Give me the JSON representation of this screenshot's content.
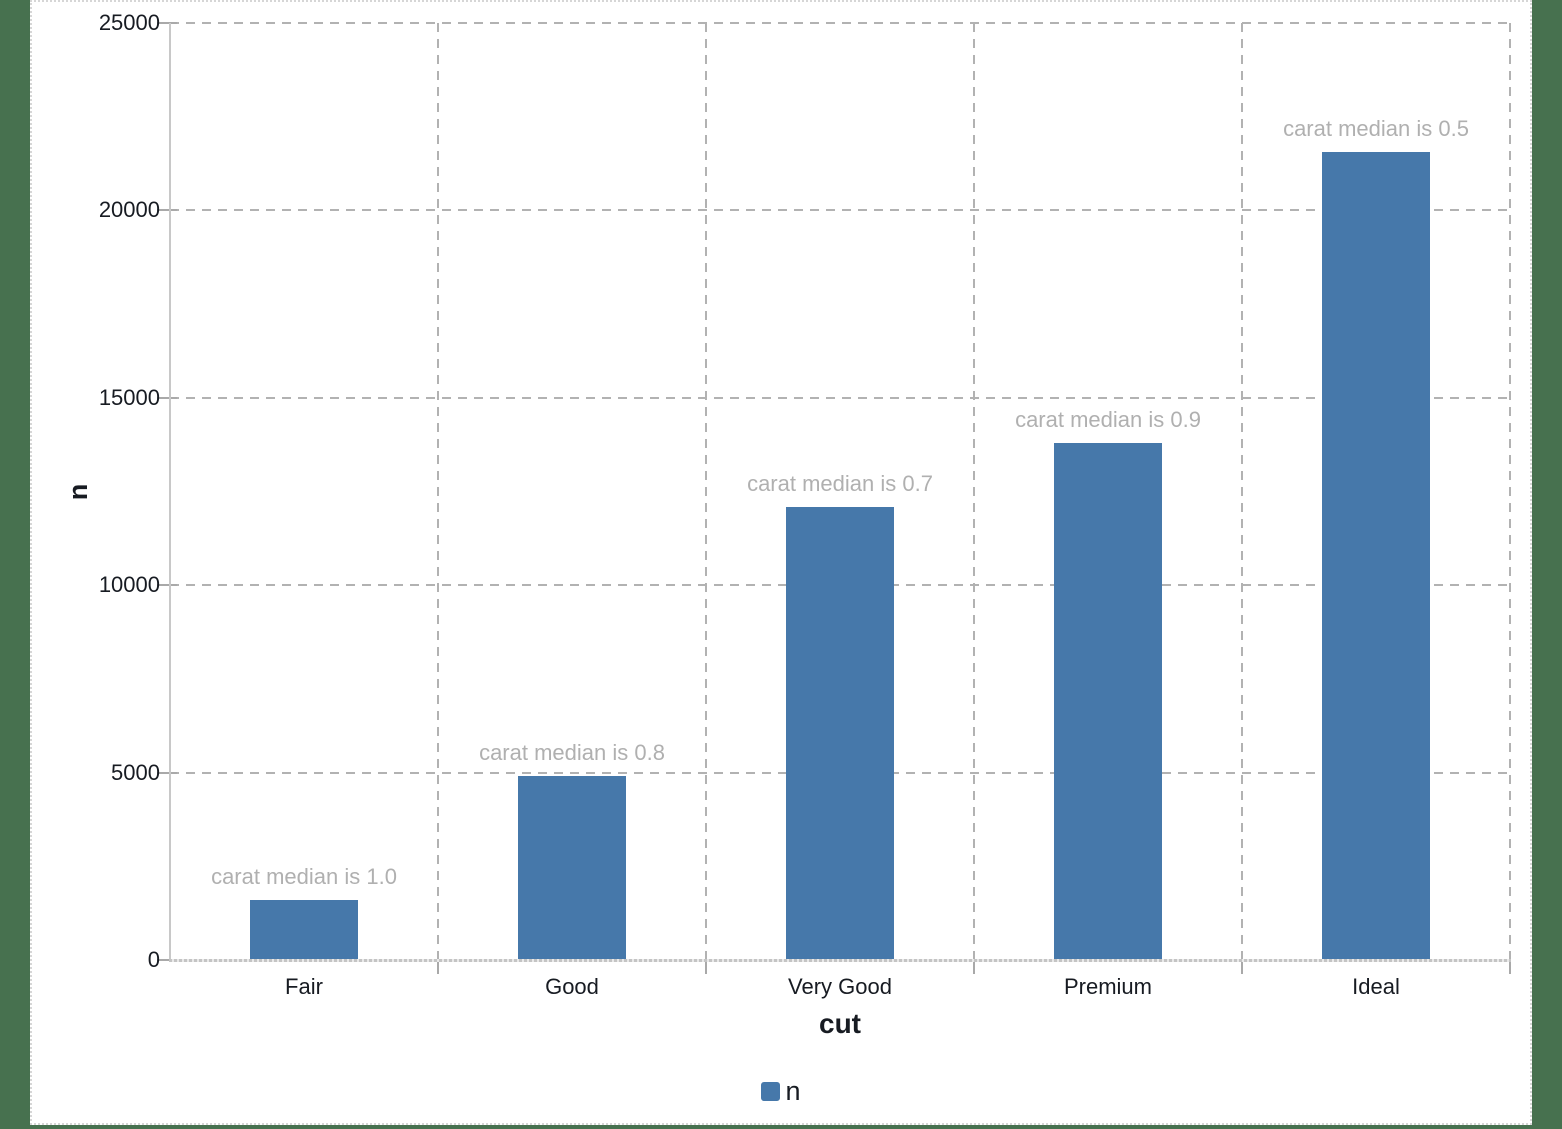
{
  "page": {
    "background_color": "#47714f",
    "panel_color": "#ffffff"
  },
  "chart_data": {
    "type": "bar",
    "title": "",
    "categories": [
      "Fair",
      "Good",
      "Very Good",
      "Premium",
      "Ideal"
    ],
    "series": [
      {
        "name": "n",
        "color": "#4678aa",
        "values": [
          1610,
          4906,
          12082,
          13791,
          21551
        ]
      }
    ],
    "bar_annotations": [
      "carat median is 1.0",
      "carat median is 0.8",
      "carat median is 0.7",
      "carat median is 0.9",
      "carat median is 0.5"
    ],
    "xlabel": "cut",
    "ylabel": "n",
    "ylim": [
      0,
      25000
    ],
    "yticks": [
      0,
      5000,
      10000,
      15000,
      20000,
      25000
    ],
    "ytick_labels": [
      "0",
      "5000",
      "10000",
      "15000",
      "20000",
      "25000"
    ],
    "grid": "dashed, horizontal and vertical",
    "legend_position": "bottom",
    "legend_label": "n",
    "colors": {
      "bar": "#4678aa",
      "annotation_text": "#b0b0b0",
      "gridline": "#b2b2b2",
      "axis_line": "#c8c8c8",
      "tick_text": "#171b22"
    }
  }
}
